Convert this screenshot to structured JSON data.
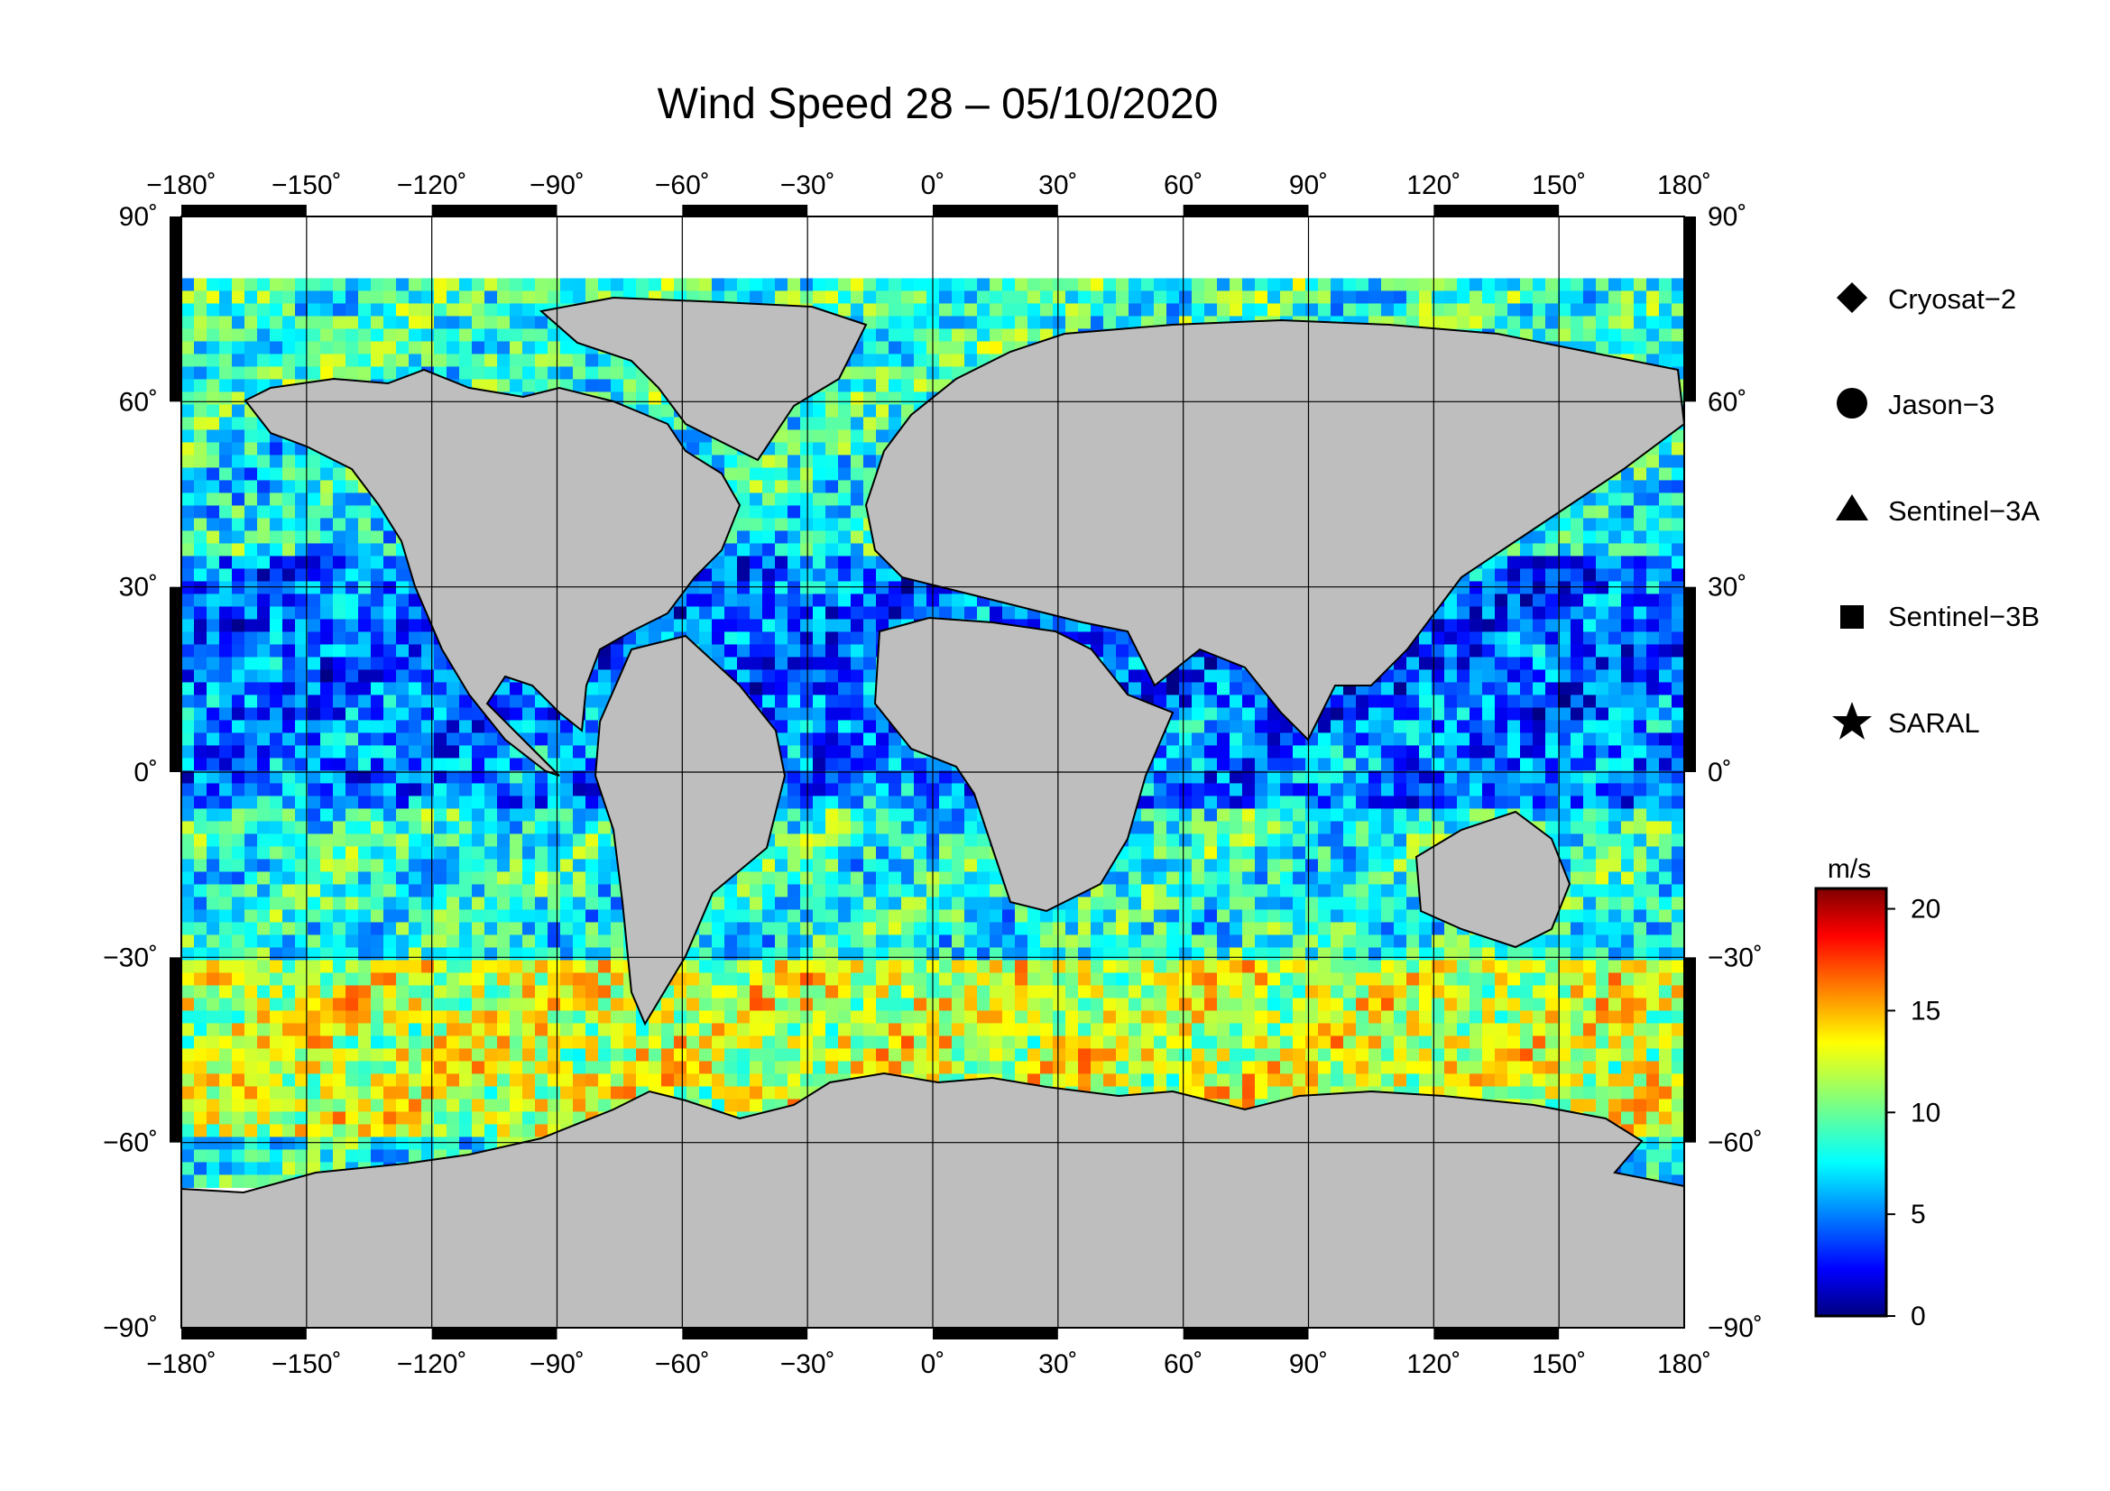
{
  "title": "Wind Speed 28 – 05/10/2020",
  "map": {
    "projection": "equirectangular",
    "lon_range": [
      -180,
      180
    ],
    "lat_range": [
      -90,
      90
    ],
    "lon_ticks": [
      "−180˚",
      "−150˚",
      "−120˚",
      "−90˚",
      "−60˚",
      "−30˚",
      "0˚",
      "30˚",
      "60˚",
      "90˚",
      "120˚",
      "150˚",
      "180˚"
    ],
    "lat_ticks": [
      "90˚",
      "60˚",
      "30˚",
      "0˚",
      "−30˚",
      "−60˚",
      "−90˚"
    ],
    "lon_values": [
      -180,
      -150,
      -120,
      -90,
      -60,
      -30,
      0,
      30,
      60,
      90,
      120,
      150,
      180
    ],
    "lat_values": [
      90,
      60,
      30,
      0,
      -30,
      -60,
      -90
    ],
    "land_color": "#bebebe",
    "ice_color": "#ffffff",
    "grid": true
  },
  "legend": {
    "placement": "right",
    "items": [
      {
        "symbol": "diamond",
        "label": "Cryosat−2"
      },
      {
        "symbol": "circle",
        "label": "Jason−3"
      },
      {
        "symbol": "triangle",
        "label": "Sentinel−3A"
      },
      {
        "symbol": "square",
        "label": "Sentinel−3B"
      },
      {
        "symbol": "star",
        "label": "SARAL"
      }
    ]
  },
  "colorbar": {
    "unit": "m/s",
    "min": 0,
    "max": 21,
    "ticks": [
      "20",
      "15",
      "10",
      "5",
      "0"
    ],
    "tick_values": [
      20,
      15,
      10,
      5,
      0
    ],
    "colormap": "jet"
  }
}
